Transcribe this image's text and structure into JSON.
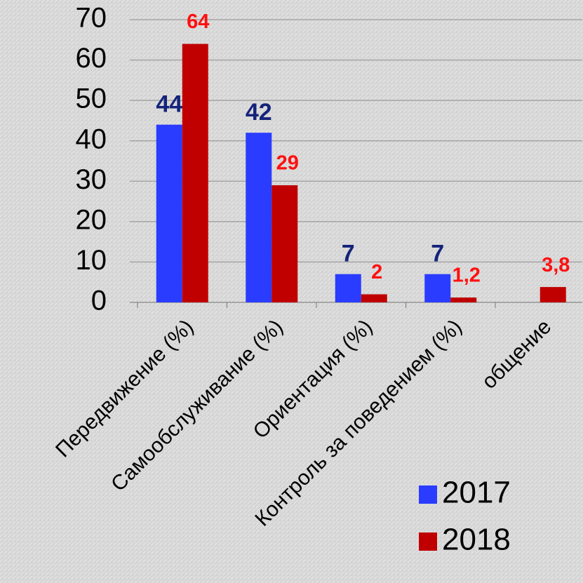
{
  "chart_data": {
    "type": "bar",
    "categories": [
      "Передвижение (%)",
      "Самообслуживание (%)",
      "Ориентация (%)",
      "Контроль за поведением (%)",
      "общение"
    ],
    "series": [
      {
        "name": "2017",
        "color": "#2a3cff",
        "label_color": "#14237a",
        "values": [
          44,
          42,
          7,
          7,
          null
        ]
      },
      {
        "name": "2018",
        "color": "#c00000",
        "label_color": "#ff1010",
        "values": [
          64,
          29,
          2,
          1.2,
          3.8
        ],
        "value_labels": [
          "64",
          "29",
          "2",
          "1,2",
          "3,8"
        ]
      }
    ],
    "ylim": [
      0,
      70
    ],
    "yticks": [
      0,
      10,
      20,
      30,
      40,
      50,
      60,
      70
    ],
    "grid": true
  }
}
